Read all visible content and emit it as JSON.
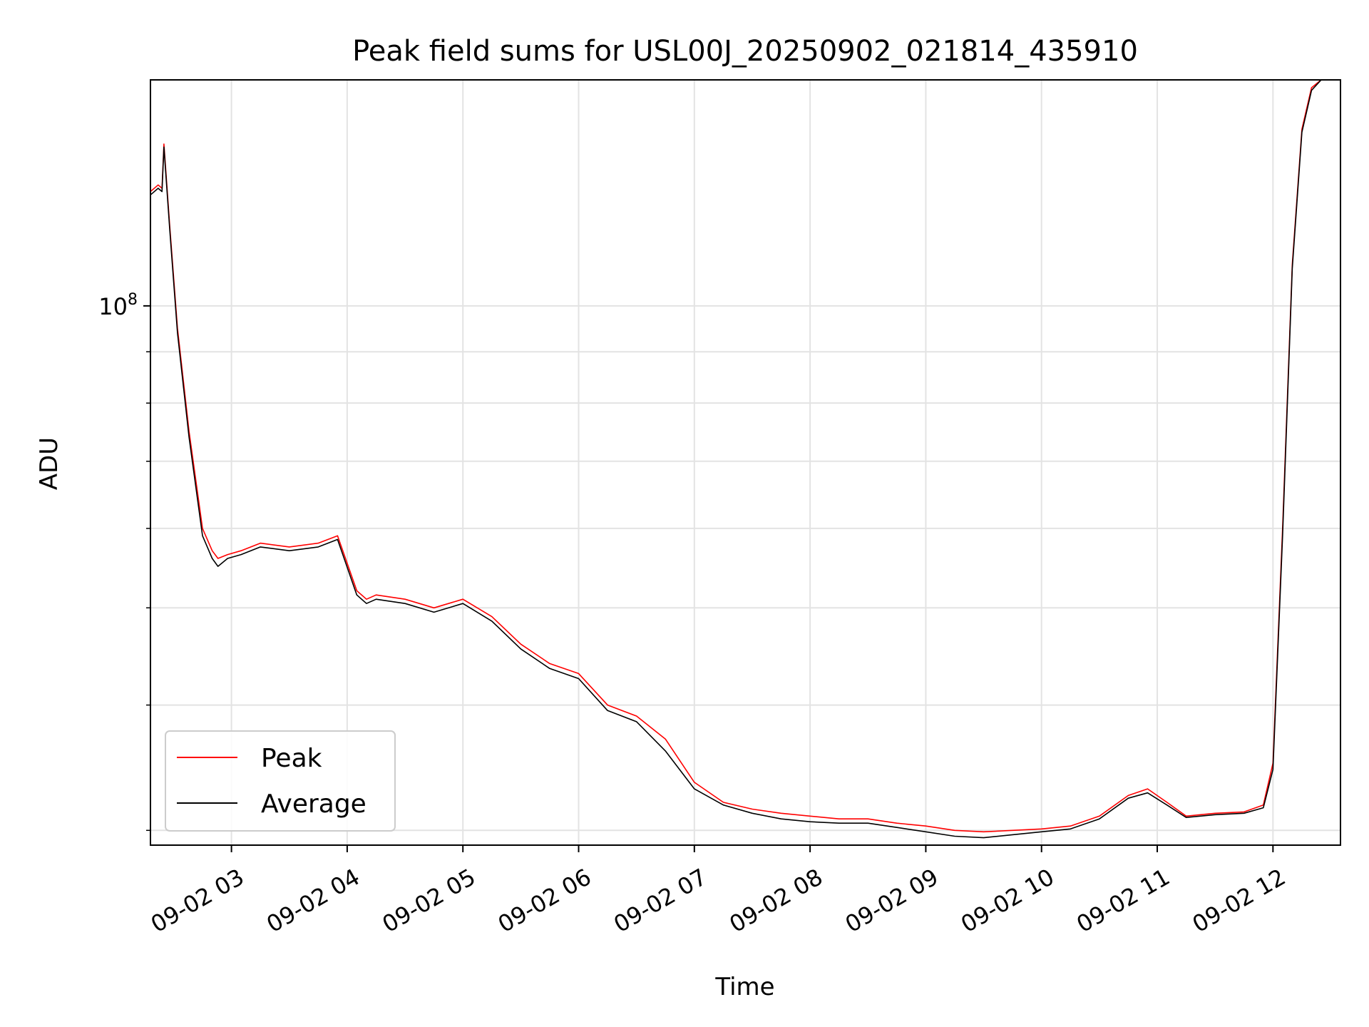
{
  "chart_data": {
    "type": "line",
    "title": "Peak field sums for USL00J_20250902_021814_435910",
    "xlabel": "Time",
    "ylabel": "ADU",
    "y_scale": "log",
    "ylim": [
      29000000,
      168000000
    ],
    "xlim": [
      "2025-09-02 02:18",
      "2025-09-02 12:35"
    ],
    "grid": true,
    "legend_position": "lower-left",
    "x_tick_labels": [
      "09-02 03",
      "09-02 04",
      "09-02 05",
      "09-02 06",
      "09-02 07",
      "09-02 08",
      "09-02 09",
      "09-02 10",
      "09-02 11",
      "09-02 12"
    ],
    "x_ticks": [
      "2025-09-02 03:00",
      "2025-09-02 04:00",
      "2025-09-02 05:00",
      "2025-09-02 06:00",
      "2025-09-02 07:00",
      "2025-09-02 08:00",
      "2025-09-02 09:00",
      "2025-09-02 10:00",
      "2025-09-02 11:00",
      "2025-09-02 12:00"
    ],
    "y_major_tick_labels": [
      {
        "base": "10",
        "exp": "8",
        "value": 100000000
      }
    ],
    "y_minor_ticks": [
      30000000,
      40000000,
      50000000,
      60000000,
      70000000,
      80000000,
      90000000
    ],
    "series": [
      {
        "name": "Peak",
        "color": "#ff0000",
        "x": [
          "2025-09-02 02:18",
          "2025-09-02 02:22",
          "2025-09-02 02:24",
          "2025-09-02 02:25",
          "2025-09-02 02:28",
          "2025-09-02 02:32",
          "2025-09-02 02:38",
          "2025-09-02 02:45",
          "2025-09-02 02:50",
          "2025-09-02 02:53",
          "2025-09-02 02:58",
          "2025-09-02 03:05",
          "2025-09-02 03:15",
          "2025-09-02 03:30",
          "2025-09-02 03:45",
          "2025-09-02 03:55",
          "2025-09-02 04:05",
          "2025-09-02 04:10",
          "2025-09-02 04:15",
          "2025-09-02 04:30",
          "2025-09-02 04:45",
          "2025-09-02 05:00",
          "2025-09-02 05:15",
          "2025-09-02 05:30",
          "2025-09-02 05:45",
          "2025-09-02 06:00",
          "2025-09-02 06:15",
          "2025-09-02 06:30",
          "2025-09-02 06:45",
          "2025-09-02 07:00",
          "2025-09-02 07:15",
          "2025-09-02 07:30",
          "2025-09-02 07:45",
          "2025-09-02 08:00",
          "2025-09-02 08:15",
          "2025-09-02 08:30",
          "2025-09-02 08:45",
          "2025-09-02 09:00",
          "2025-09-02 09:15",
          "2025-09-02 09:30",
          "2025-09-02 09:45",
          "2025-09-02 10:00",
          "2025-09-02 10:15",
          "2025-09-02 10:30",
          "2025-09-02 10:45",
          "2025-09-02 10:55",
          "2025-09-02 11:05",
          "2025-09-02 11:15",
          "2025-09-02 11:30",
          "2025-09-02 11:45",
          "2025-09-02 11:55",
          "2025-09-02 12:00",
          "2025-09-02 12:05",
          "2025-09-02 12:10",
          "2025-09-02 12:15",
          "2025-09-02 12:20",
          "2025-09-02 12:25",
          "2025-09-02 12:35"
        ],
        "y": [
          130000000,
          132000000,
          131000000,
          145000000,
          120000000,
          95000000,
          75000000,
          60000000,
          57000000,
          56000000,
          56500000,
          57000000,
          58000000,
          57500000,
          58000000,
          59000000,
          52000000,
          51000000,
          51500000,
          51000000,
          50000000,
          51000000,
          49000000,
          46000000,
          44000000,
          43000000,
          40000000,
          39000000,
          37000000,
          33500000,
          32000000,
          31500000,
          31200000,
          31000000,
          30800000,
          30800000,
          30500000,
          30300000,
          30000000,
          29900000,
          30000000,
          30100000,
          30300000,
          31000000,
          32500000,
          33000000,
          32000000,
          31000000,
          31200000,
          31300000,
          31800000,
          35000000,
          60000000,
          110000000,
          150000000,
          165000000,
          168000000,
          168000000
        ]
      },
      {
        "name": "Average",
        "color": "#000000",
        "x": [
          "2025-09-02 02:18",
          "2025-09-02 02:22",
          "2025-09-02 02:24",
          "2025-09-02 02:25",
          "2025-09-02 02:28",
          "2025-09-02 02:32",
          "2025-09-02 02:38",
          "2025-09-02 02:45",
          "2025-09-02 02:50",
          "2025-09-02 02:53",
          "2025-09-02 02:58",
          "2025-09-02 03:05",
          "2025-09-02 03:15",
          "2025-09-02 03:30",
          "2025-09-02 03:45",
          "2025-09-02 03:55",
          "2025-09-02 04:05",
          "2025-09-02 04:10",
          "2025-09-02 04:15",
          "2025-09-02 04:30",
          "2025-09-02 04:45",
          "2025-09-02 05:00",
          "2025-09-02 05:15",
          "2025-09-02 05:30",
          "2025-09-02 05:45",
          "2025-09-02 06:00",
          "2025-09-02 06:15",
          "2025-09-02 06:30",
          "2025-09-02 06:45",
          "2025-09-02 07:00",
          "2025-09-02 07:15",
          "2025-09-02 07:30",
          "2025-09-02 07:45",
          "2025-09-02 08:00",
          "2025-09-02 08:15",
          "2025-09-02 08:30",
          "2025-09-02 08:45",
          "2025-09-02 09:00",
          "2025-09-02 09:15",
          "2025-09-02 09:30",
          "2025-09-02 09:45",
          "2025-09-02 10:00",
          "2025-09-02 10:15",
          "2025-09-02 10:30",
          "2025-09-02 10:45",
          "2025-09-02 10:55",
          "2025-09-02 11:05",
          "2025-09-02 11:15",
          "2025-09-02 11:30",
          "2025-09-02 11:45",
          "2025-09-02 11:55",
          "2025-09-02 12:00",
          "2025-09-02 12:05",
          "2025-09-02 12:10",
          "2025-09-02 12:15",
          "2025-09-02 12:20",
          "2025-09-02 12:25",
          "2025-09-02 12:35"
        ],
        "y": [
          129000000,
          131000000,
          130000000,
          144000000,
          119000000,
          94000000,
          74000000,
          59000000,
          56000000,
          55000000,
          56000000,
          56500000,
          57500000,
          57000000,
          57500000,
          58500000,
          51500000,
          50500000,
          51000000,
          50500000,
          49500000,
          50500000,
          48500000,
          45500000,
          43500000,
          42500000,
          39500000,
          38500000,
          36000000,
          33000000,
          31800000,
          31200000,
          30800000,
          30600000,
          30500000,
          30500000,
          30200000,
          29900000,
          29600000,
          29500000,
          29700000,
          29900000,
          30100000,
          30800000,
          32300000,
          32700000,
          31800000,
          30900000,
          31100000,
          31200000,
          31600000,
          34500000,
          59000000,
          109000000,
          149000000,
          164000000,
          168000000,
          168000000
        ]
      }
    ]
  }
}
